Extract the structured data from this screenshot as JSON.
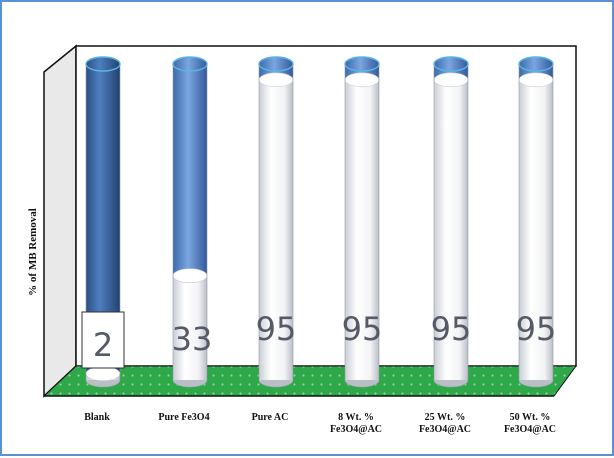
{
  "chart_data": {
    "type": "bar",
    "title": "",
    "xlabel": "",
    "ylabel": "% of MB Removal",
    "ylim": [
      0,
      100
    ],
    "categories": [
      "Blank",
      "Pure Fe3O4",
      "Pure AC",
      "8 Wt. % Fe3O4@AC",
      "25 Wt. % Fe3O4@AC",
      "50 Wt. % Fe3O4@AC"
    ],
    "category_lines": [
      [
        "Blank"
      ],
      [
        "Pure Fe3O4"
      ],
      [
        "Pure AC"
      ],
      [
        "8 Wt. %",
        "Fe3O4@AC"
      ],
      [
        "25 Wt. %",
        "Fe3O4@AC"
      ],
      [
        "50 Wt. %",
        "Fe3O4@AC"
      ]
    ],
    "values": [
      2,
      33,
      95,
      95,
      95,
      95
    ],
    "value_labels": [
      "2",
      "33",
      "95",
      "95",
      "95",
      "95"
    ],
    "grid": false,
    "legend": "none",
    "colors": {
      "removed": "#ffffff",
      "remaining": "#3f6fae",
      "floor": "#2fa84a",
      "wall": "#e6e6e6",
      "frame_border": "#5b8fd6"
    }
  }
}
